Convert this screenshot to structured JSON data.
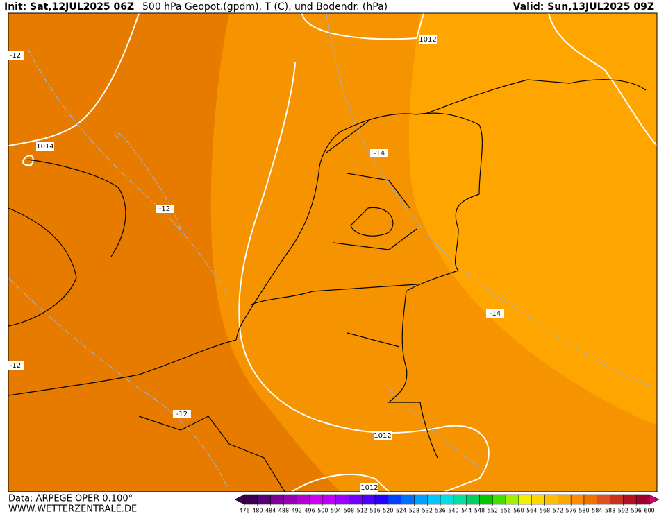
{
  "header": {
    "init": "Init: Sat,12JUL2025 06Z",
    "title": "500 hPa Geopot.(gpdm), T (C), und Bodendr. (hPa)",
    "valid": "Valid: Sun,13JUL2025 09Z"
  },
  "footer": {
    "source": "Data: ARPEGE OPER 0.100°",
    "site": "WWW.WETTERZENTRALE.DE"
  },
  "contour_labels": [
    "1012",
    "-12",
    "1014",
    "-14",
    "-12",
    "-14",
    "-12",
    "-12",
    "1012",
    "1012"
  ],
  "colorbar": {
    "ticks": [
      476,
      480,
      484,
      488,
      492,
      496,
      500,
      504,
      508,
      512,
      516,
      520,
      524,
      528,
      532,
      536,
      540,
      544,
      548,
      552,
      556,
      560,
      564,
      568,
      572,
      576,
      580,
      584,
      588,
      592,
      596,
      600
    ],
    "colors": [
      "#3c0050",
      "#5a0078",
      "#7a0096",
      "#9600b4",
      "#b400d2",
      "#d200f0",
      "#c000ff",
      "#9a00ff",
      "#7400ff",
      "#4c00ff",
      "#2800ff",
      "#0040ff",
      "#0070ff",
      "#00a0ff",
      "#00c8ff",
      "#00e0e0",
      "#00e0a0",
      "#00d060",
      "#00c800",
      "#40e000",
      "#a0f000",
      "#f0f000",
      "#ffd700",
      "#ffbe00",
      "#ffa500",
      "#ff8c00",
      "#f07000",
      "#e05020",
      "#c83020",
      "#b01020",
      "#a00030"
    ],
    "under_color": "#3c0050",
    "over_color": "#d0007a"
  }
}
